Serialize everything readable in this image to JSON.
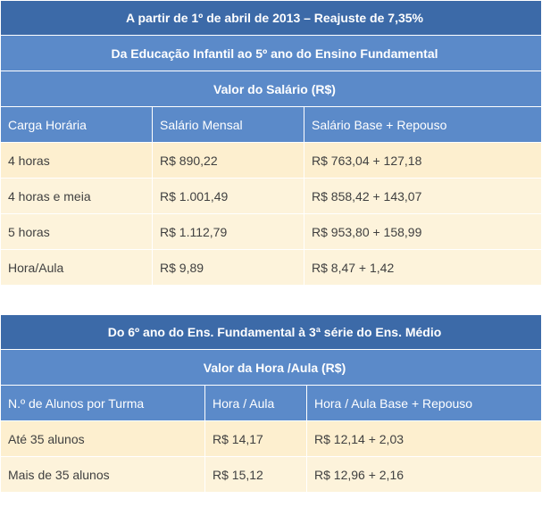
{
  "table1": {
    "title": "A partir de 1º de abril de 2013 – Reajuste de 7,35%",
    "subtitle": "Da Educação Infantil ao 5º ano do Ensino Fundamental",
    "section": "Valor do Salário (R$)",
    "headers": [
      "Carga Horária",
      "Salário Mensal",
      "Salário Base + Repouso"
    ],
    "rows": [
      [
        "4 horas",
        "R$ 890,22",
        "R$ 763,04 + 127,18"
      ],
      [
        "4 horas e meia",
        "R$ 1.001,49",
        "R$ 858,42 + 143,07"
      ],
      [
        "5 horas",
        "R$ 1.112,79",
        "R$ 953,80 + 158,99"
      ],
      [
        "Hora/Aula",
        "R$ 9,89",
        "R$ 8,47 + 1,42"
      ]
    ]
  },
  "table2": {
    "title": "Do 6º ano do Ens. Fundamental à 3ª série do Ens. Médio",
    "section": "Valor da Hora /Aula (R$)",
    "headers": [
      "N.º de Alunos por Turma",
      "Hora / Aula",
      "Hora / Aula Base + Repouso"
    ],
    "rows": [
      [
        "Até 35 alunos",
        "R$ 14,17",
        "R$ 12,14 + 2,03"
      ],
      [
        "Mais de 35 alunos",
        "R$ 15,12",
        "R$ 12,96 + 2,16"
      ]
    ]
  },
  "colors": {
    "header_dark": "#3c6aa8",
    "header_mid": "#5b8ac9",
    "row_bg": "#fdf3db"
  }
}
